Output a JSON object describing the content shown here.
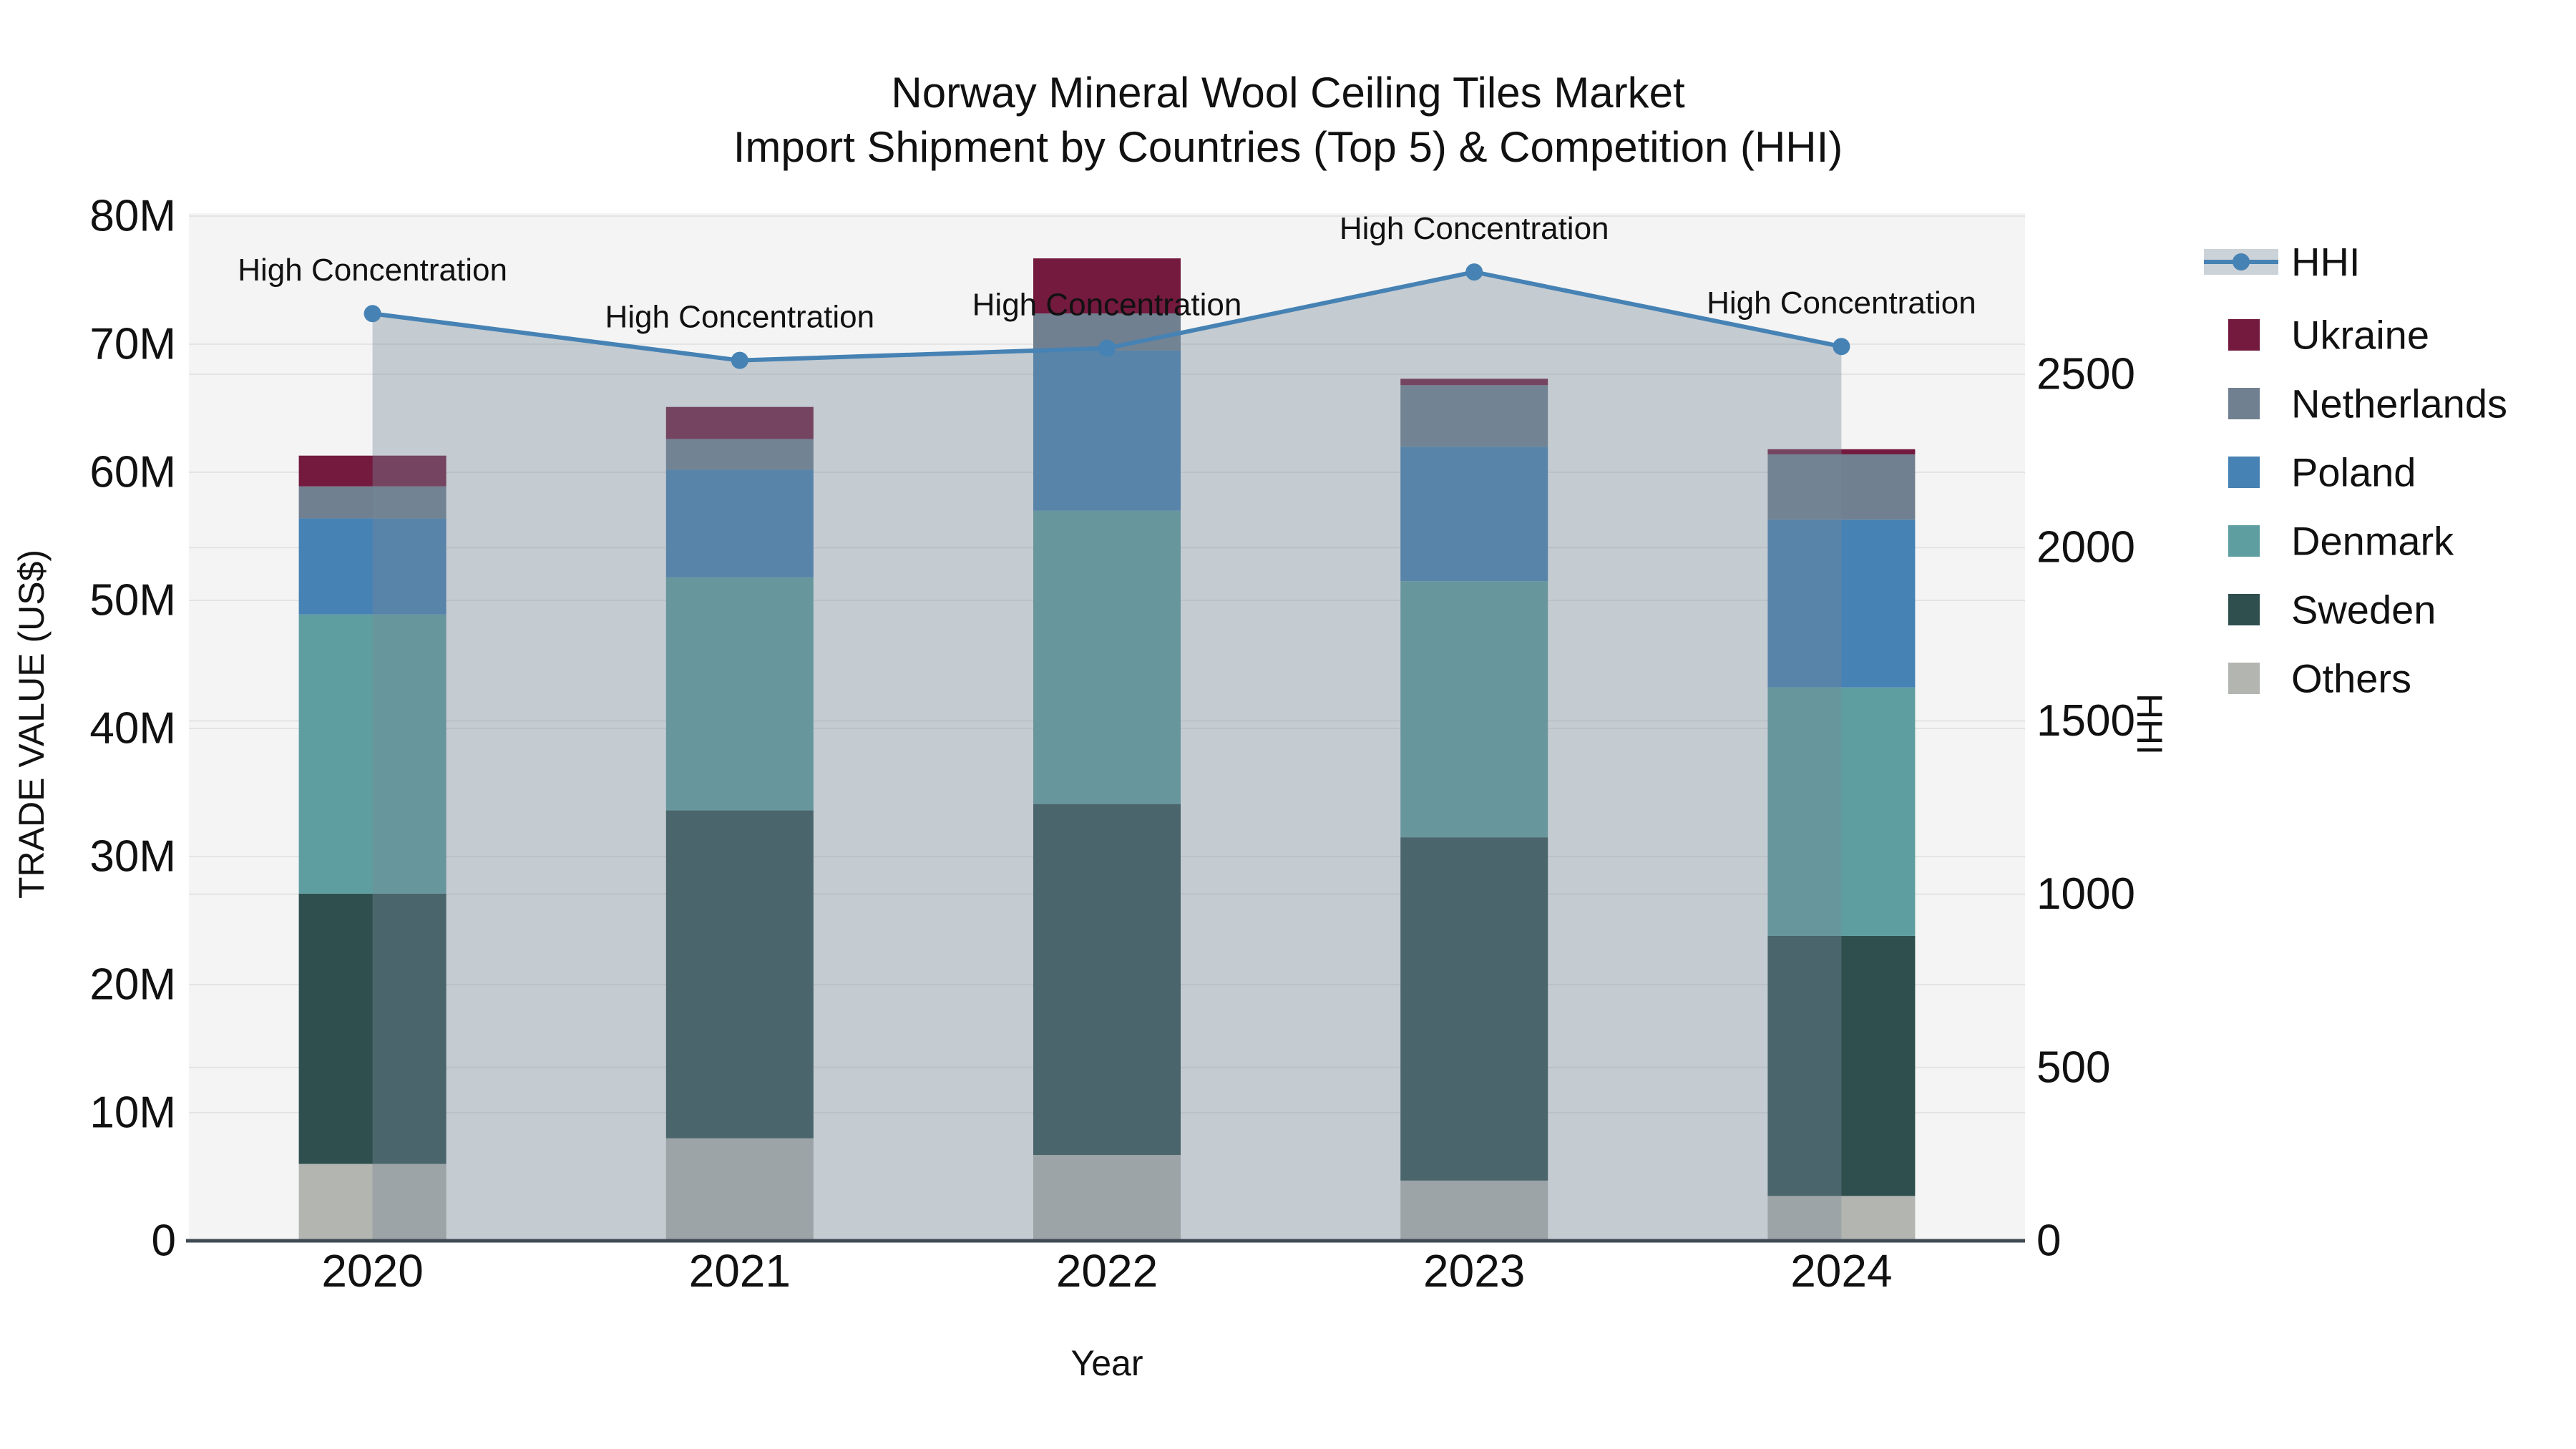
{
  "title": {
    "line1": "Norway Mineral Wool Ceiling Tiles Market",
    "line2": "Import Shipment by Countries (Top 5) & Competition (HHI)"
  },
  "axes": {
    "x_title": "Year",
    "y_left_title": "TRADE VALUE (US$)",
    "y_right_title": "HHI",
    "y_left_ticks": [
      "0",
      "10M",
      "20M",
      "30M",
      "40M",
      "50M",
      "60M",
      "70M",
      "80M"
    ],
    "y_right_ticks": [
      "0",
      "500",
      "1000",
      "1500",
      "2000",
      "2500"
    ]
  },
  "legend": {
    "items": [
      {
        "label": "HHI",
        "type": "line",
        "color": "#4682b4",
        "band_color": "#cbd2d8"
      },
      {
        "label": "Ukraine",
        "type": "square",
        "color": "#731a3e"
      },
      {
        "label": "Netherlands",
        "type": "square",
        "color": "#708090"
      },
      {
        "label": "Poland",
        "type": "square",
        "color": "#4682b4"
      },
      {
        "label": "Denmark",
        "type": "square",
        "color": "#5f9ea0"
      },
      {
        "label": "Sweden",
        "type": "square",
        "color": "#2f4f4f"
      },
      {
        "label": "Others",
        "type": "square",
        "color": "#b3b5b1"
      }
    ]
  },
  "colors": {
    "plot_bg": "#f4f4f4",
    "gridline": "#e4e4e4",
    "axis_line": "#3f4a54",
    "hhi_line": "#4682b4",
    "hhi_area_fill": "rgba(119,136,153,0.38)",
    "text": "#111111"
  },
  "chart_data": {
    "type": "bar+line",
    "title": "Norway Mineral Wool Ceiling Tiles Market — Import Shipment by Countries (Top 5) & Competition (HHI)",
    "categories": [
      "2020",
      "2021",
      "2022",
      "2023",
      "2024"
    ],
    "bar_unit": "M US$",
    "stack_order_bottom_to_top": [
      "Others",
      "Sweden",
      "Denmark",
      "Poland",
      "Netherlands",
      "Ukraine"
    ],
    "series": [
      {
        "name": "Others",
        "color": "#b3b5b1",
        "values": [
          6.0,
          8.0,
          6.7,
          4.7,
          3.5
        ]
      },
      {
        "name": "Sweden",
        "color": "#2f4f4f",
        "values": [
          21.1,
          25.6,
          27.4,
          26.8,
          20.3
        ]
      },
      {
        "name": "Denmark",
        "color": "#5f9ea0",
        "values": [
          21.8,
          18.2,
          22.9,
          20.0,
          19.4
        ]
      },
      {
        "name": "Poland",
        "color": "#4682b4",
        "values": [
          7.5,
          8.4,
          12.5,
          10.5,
          13.1
        ]
      },
      {
        "name": "Netherlands",
        "color": "#708090",
        "values": [
          2.5,
          2.4,
          2.9,
          4.8,
          5.1
        ]
      },
      {
        "name": "Ukraine",
        "color": "#731a3e",
        "values": [
          2.4,
          2.5,
          4.3,
          0.5,
          0.4
        ]
      }
    ],
    "bar_totals": [
      61.3,
      65.1,
      76.7,
      67.3,
      61.8
    ],
    "hhi": {
      "name": "HHI",
      "values": [
        2675,
        2540,
        2575,
        2795,
        2580
      ],
      "annotation": "High Concentration",
      "area_fill": true
    },
    "ylim_left": [
      0,
      80.2
    ],
    "ylim_right": [
      0,
      2965
    ],
    "xlabel": "Year",
    "ylabel_left": "TRADE VALUE (US$)",
    "ylabel_right": "HHI",
    "grid": true,
    "legend_position": "right"
  }
}
